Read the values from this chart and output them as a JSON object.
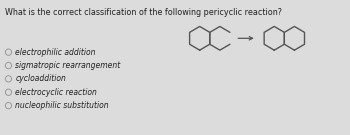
{
  "title": "What is the correct classification of the following pericyclic reaction?",
  "options": [
    "electrophilic addition",
    "sigmatropic rearrangement",
    "cycloaddition",
    "electrocyclic reaction",
    "nucleophilic substitution"
  ],
  "bg_color": "#dcdcdc",
  "title_fontsize": 5.8,
  "option_fontsize": 5.5,
  "radio_color": "#999999",
  "mol_color": "#555555",
  "text_color": "#222222"
}
